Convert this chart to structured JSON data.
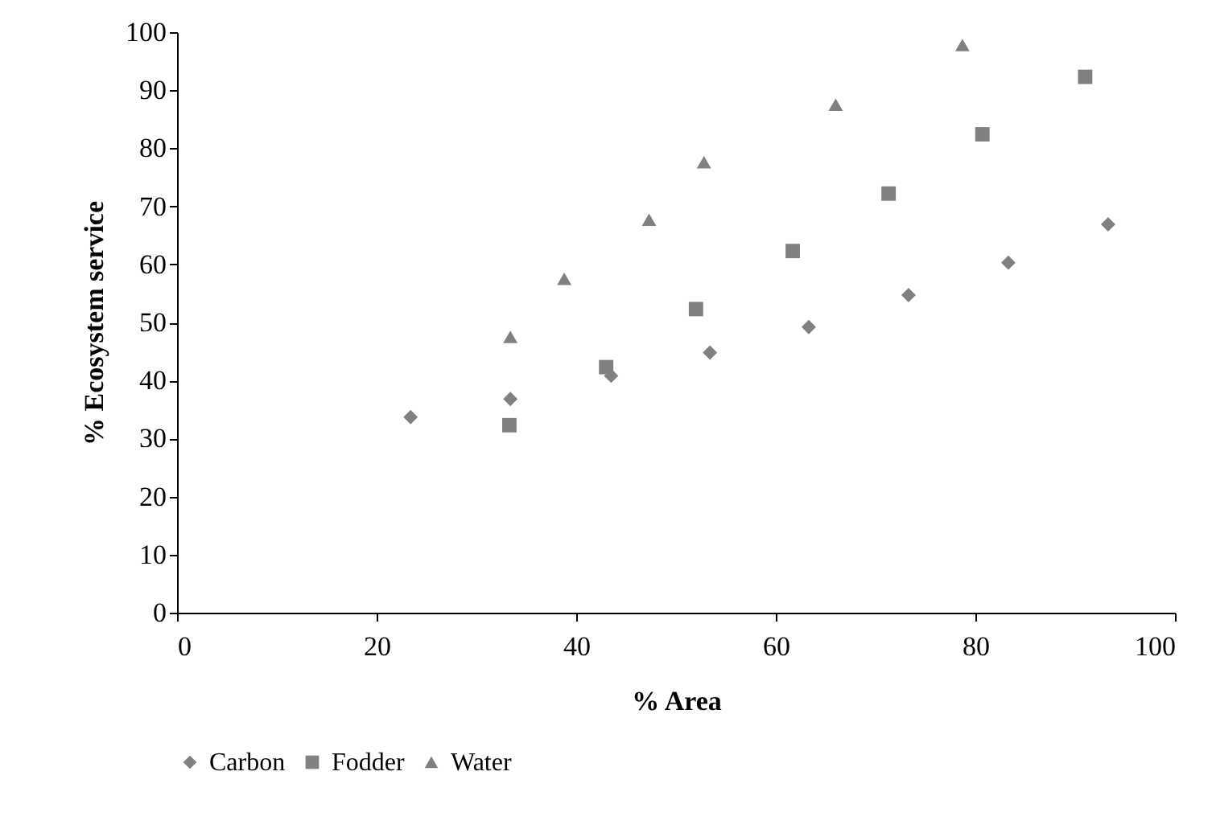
{
  "chart_data": {
    "type": "scatter",
    "xlabel": "% Area",
    "ylabel": "% Ecosystem service",
    "xlim": [
      0,
      100
    ],
    "ylim": [
      0,
      100
    ],
    "xticks": [
      0,
      20,
      40,
      60,
      80,
      100
    ],
    "yticks": [
      0,
      10,
      20,
      30,
      40,
      50,
      60,
      70,
      80,
      90,
      100
    ],
    "grid": false,
    "legend": "bottom",
    "series": [
      {
        "name": "Carbon",
        "color": "#808080",
        "marker": "diamond",
        "x": [
          23.4,
          33.4,
          43.5,
          53.4,
          63.3,
          73.3,
          83.3,
          93.3
        ],
        "values": [
          33.7,
          36.8,
          40.8,
          44.8,
          49.2,
          54.7,
          60.3,
          66.9
        ]
      },
      {
        "name": "Fodder",
        "color": "#808080",
        "marker": "square",
        "x": [
          33.3,
          43,
          52,
          61.7,
          71.3,
          80.7,
          91
        ],
        "values": [
          32.3,
          42.3,
          52.3,
          62.3,
          72.2,
          82.4,
          92.3
        ]
      },
      {
        "name": "Water",
        "color": "#808080",
        "marker": "triangle",
        "x": [
          33.4,
          38.8,
          47.3,
          52.8,
          66,
          78.7
        ],
        "values": [
          47.5,
          57.5,
          67.7,
          77.6,
          87.5,
          97.8
        ]
      }
    ]
  }
}
